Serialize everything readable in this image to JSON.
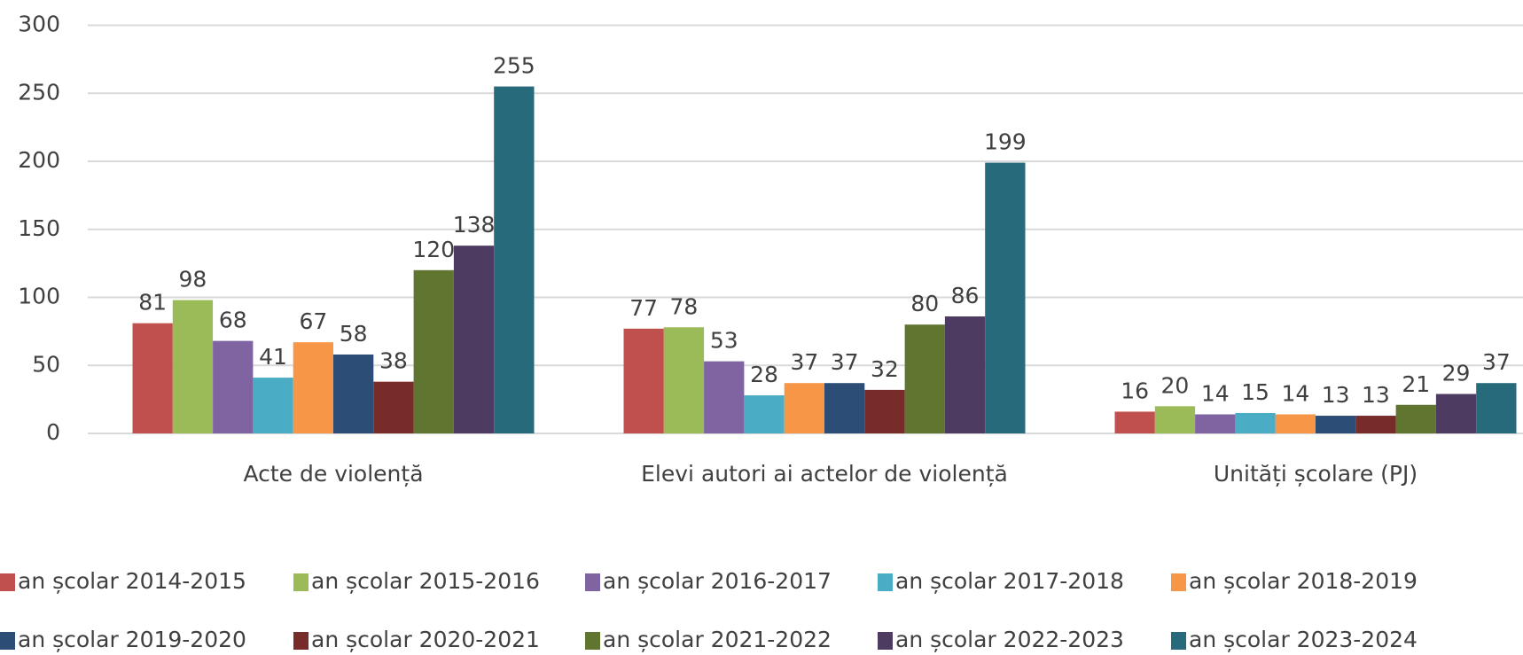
{
  "chart_data": {
    "type": "bar",
    "categories": [
      "Acte de violență",
      "Elevi autori ai actelor de violență",
      "Unități școlare (PJ)"
    ],
    "series": [
      {
        "name": "an școlar 2014-2015",
        "color": "#c0504d",
        "values": [
          81,
          77,
          16
        ]
      },
      {
        "name": "an școlar 2015-2016",
        "color": "#9bbb59",
        "values": [
          98,
          78,
          20
        ]
      },
      {
        "name": "an școlar 2016-2017",
        "color": "#8064a2",
        "values": [
          68,
          53,
          14
        ]
      },
      {
        "name": "an școlar 2017-2018",
        "color": "#4bacc6",
        "values": [
          41,
          28,
          15
        ]
      },
      {
        "name": "an școlar 2018-2019",
        "color": "#f79646",
        "values": [
          67,
          37,
          14
        ]
      },
      {
        "name": "an școlar 2019-2020",
        "color": "#2c4d75",
        "values": [
          58,
          37,
          13
        ]
      },
      {
        "name": "an școlar 2020-2021",
        "color": "#772c2a",
        "values": [
          38,
          32,
          13
        ]
      },
      {
        "name": "an școlar 2021-2022",
        "color": "#5f7530",
        "values": [
          120,
          80,
          21
        ]
      },
      {
        "name": "an școlar 2022-2023",
        "color": "#4d3b62",
        "values": [
          138,
          86,
          29
        ]
      },
      {
        "name": "an școlar 2023-2024",
        "color": "#276a7c",
        "values": [
          255,
          199,
          37
        ]
      }
    ],
    "ylim": [
      0,
      300
    ],
    "yticks": [
      0,
      50,
      100,
      150,
      200,
      250,
      300
    ],
    "grid": true,
    "legend": "bottom"
  }
}
